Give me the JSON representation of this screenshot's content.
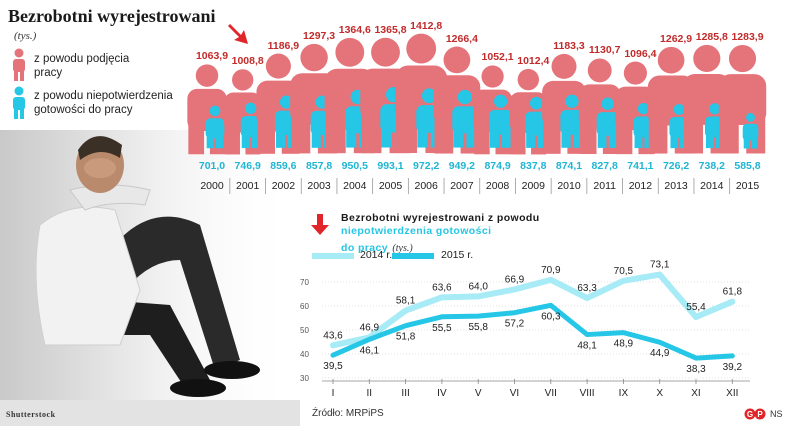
{
  "header": {
    "title": "Bezrobotni wyrejestrowani",
    "unit": "(tys.)",
    "legend_red": [
      "z powodu podjęcia",
      "pracy"
    ],
    "legend_blue": [
      "z powodu niepotwierdzenia",
      "gotowości do pracy"
    ]
  },
  "colors": {
    "red": "#e5737a",
    "red_text": "#c22b2b",
    "blue": "#25c6e6",
    "light_blue": "#a6ebf6"
  },
  "icons": [
    "arrow-down-red-icon",
    "person-red-icon",
    "person-blue-icon",
    "figure-red-icon",
    "figure-blue-icon"
  ],
  "chart_data": [
    {
      "type": "bar",
      "categories": [
        "2000",
        "2001",
        "2002",
        "2003",
        "2004",
        "2005",
        "2006",
        "2007",
        "2008",
        "2009",
        "2010",
        "2011",
        "2012",
        "2013",
        "2014",
        "2015"
      ],
      "series": [
        {
          "name": "z powodu podjęcia pracy",
          "values": [
            1063.9,
            1008.8,
            1186.9,
            1297.3,
            1364.6,
            1365.8,
            1412.8,
            1266.4,
            1052.1,
            1012.4,
            1183.3,
            1130.7,
            1096.4,
            1262.9,
            1285.8,
            1283.9
          ],
          "labels": [
            "1063,9",
            "1008,8",
            "1186,9",
            "1297,3",
            "1364,6",
            "1365,8",
            "1412,8",
            "1266,4",
            "1052,1",
            "1012,4",
            "1183,3",
            "1130,7",
            "1096,4",
            "1262,9",
            "1285,8",
            "1283,9"
          ]
        },
        {
          "name": "z powodu niepotwierdzenia gotowości do pracy",
          "values": [
            701.0,
            746.9,
            859.6,
            857.8,
            950.5,
            993.1,
            972.2,
            949.2,
            874.9,
            837.8,
            874.1,
            827.8,
            741.1,
            726.2,
            738.2,
            585.8
          ],
          "labels": [
            "701,0",
            "746,9",
            "859,6",
            "857,8",
            "950,5",
            "993,1",
            "972,2",
            "949,2",
            "874,9",
            "837,8",
            "874,1",
            "827,8",
            "741,1",
            "726,2",
            "738,2",
            "585,8"
          ]
        }
      ]
    },
    {
      "type": "line",
      "title_line1": "Bezrobotni wyrejestrowani z powodu",
      "title_line2": "niepotwierdzenia gotowości",
      "title_line3": "do pracy",
      "unit": "(tys.)",
      "categories": [
        "I",
        "II",
        "III",
        "IV",
        "V",
        "VI",
        "VII",
        "VIII",
        "IX",
        "X",
        "XI",
        "XII"
      ],
      "y_ticks": [
        "70",
        "60",
        "50",
        "40",
        "30"
      ],
      "ylim": [
        30,
        75
      ],
      "series": [
        {
          "name": "2014 r.",
          "values": [
            43.6,
            46.9,
            58.1,
            63.6,
            64.0,
            66.9,
            70.9,
            63.3,
            70.5,
            73.1,
            55.4,
            61.8
          ],
          "labels": [
            "43,6",
            "46,9",
            "58,1",
            "63,6",
            "64,0",
            "66,9",
            "70,9",
            "63,3",
            "70,5",
            "73,1",
            "55,4",
            "61,8"
          ]
        },
        {
          "name": "2015 r.",
          "values": [
            39.5,
            46.1,
            51.8,
            55.5,
            55.8,
            57.2,
            60.3,
            48.1,
            48.9,
            44.9,
            38.3,
            39.2
          ],
          "labels": [
            "39,5",
            "46,1",
            "51,8",
            "55,5",
            "55,8",
            "57,2",
            "60,3",
            "48,1",
            "48,9",
            "44,9",
            "38,3",
            "39,2"
          ]
        }
      ]
    }
  ],
  "footer": {
    "photo_credit": "Shutterstock",
    "source": "Źródło: MRPiPS",
    "logo_letters": "ꟼ",
    "author": "NS"
  }
}
